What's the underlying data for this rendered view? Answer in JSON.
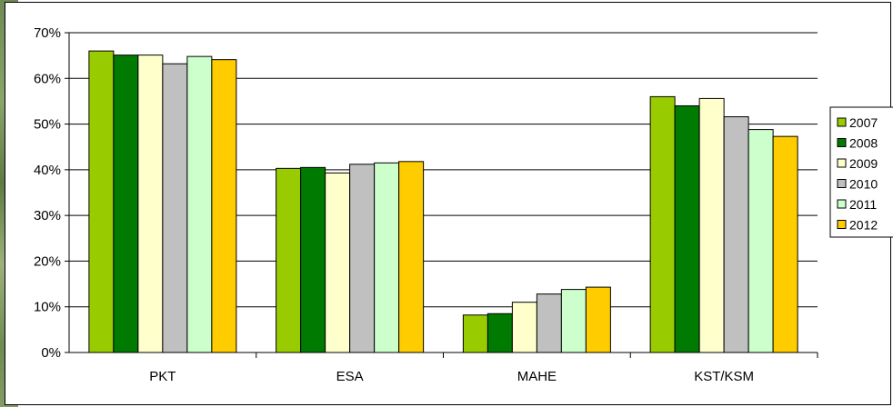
{
  "chart_data": {
    "type": "bar",
    "title": "",
    "xlabel": "",
    "ylabel": "",
    "categories": [
      "PKT",
      "ESA",
      "MAHE",
      "KST/KSM"
    ],
    "ylim": [
      0,
      70
    ],
    "y_ticks": [
      "0%",
      "10%",
      "20%",
      "30%",
      "40%",
      "50%",
      "60%",
      "70%"
    ],
    "grid": true,
    "legend_position": "right",
    "series": [
      {
        "name": "2007",
        "color": "#99cc00",
        "values": [
          66,
          40.3,
          8.2,
          56
        ]
      },
      {
        "name": "2008",
        "color": "#007a00",
        "values": [
          65.1,
          40.5,
          8.5,
          54
        ]
      },
      {
        "name": "2009",
        "color": "#ffffcc",
        "values": [
          65.1,
          39.3,
          11,
          55.6
        ]
      },
      {
        "name": "2010",
        "color": "#c0c0c0",
        "values": [
          63.2,
          41.2,
          12.8,
          51.6
        ]
      },
      {
        "name": "2011",
        "color": "#ccffcc",
        "values": [
          64.8,
          41.5,
          13.8,
          48.8
        ]
      },
      {
        "name": "2012",
        "color": "#ffcc00",
        "values": [
          64.1,
          41.8,
          14.3,
          47.3
        ]
      }
    ]
  }
}
